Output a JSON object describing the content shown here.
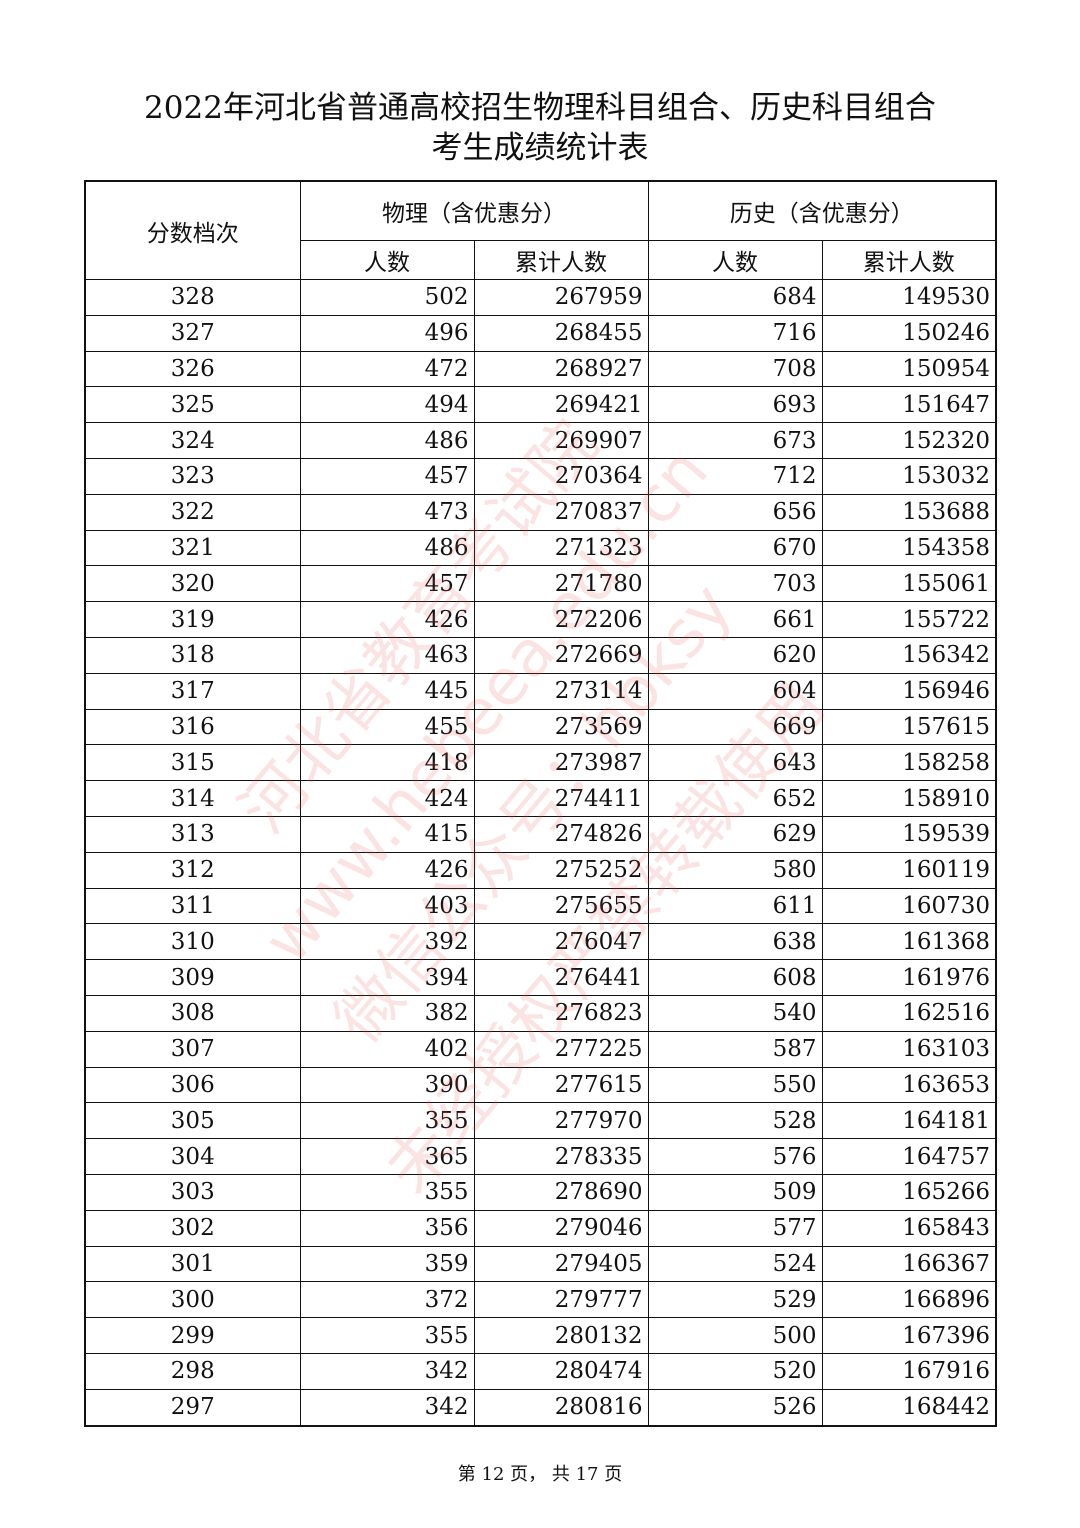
{
  "title_line1": "2022年河北省普通高校招生物理科目组合、历史科目组合",
  "title_line2": "考生成绩统计表",
  "table": {
    "col_score": "分数档次",
    "group_physics": "物理（含优惠分）",
    "group_history": "历史（含优惠分）",
    "sub_count": "人数",
    "sub_cumulative": "累计人数",
    "rows": [
      [
        "328",
        "502",
        "267959",
        "684",
        "149530"
      ],
      [
        "327",
        "496",
        "268455",
        "716",
        "150246"
      ],
      [
        "326",
        "472",
        "268927",
        "708",
        "150954"
      ],
      [
        "325",
        "494",
        "269421",
        "693",
        "151647"
      ],
      [
        "324",
        "486",
        "269907",
        "673",
        "152320"
      ],
      [
        "323",
        "457",
        "270364",
        "712",
        "153032"
      ],
      [
        "322",
        "473",
        "270837",
        "656",
        "153688"
      ],
      [
        "321",
        "486",
        "271323",
        "670",
        "154358"
      ],
      [
        "320",
        "457",
        "271780",
        "703",
        "155061"
      ],
      [
        "319",
        "426",
        "272206",
        "661",
        "155722"
      ],
      [
        "318",
        "463",
        "272669",
        "620",
        "156342"
      ],
      [
        "317",
        "445",
        "273114",
        "604",
        "156946"
      ],
      [
        "316",
        "455",
        "273569",
        "669",
        "157615"
      ],
      [
        "315",
        "418",
        "273987",
        "643",
        "158258"
      ],
      [
        "314",
        "424",
        "274411",
        "652",
        "158910"
      ],
      [
        "313",
        "415",
        "274826",
        "629",
        "159539"
      ],
      [
        "312",
        "426",
        "275252",
        "580",
        "160119"
      ],
      [
        "311",
        "403",
        "275655",
        "611",
        "160730"
      ],
      [
        "310",
        "392",
        "276047",
        "638",
        "161368"
      ],
      [
        "309",
        "394",
        "276441",
        "608",
        "161976"
      ],
      [
        "308",
        "382",
        "276823",
        "540",
        "162516"
      ],
      [
        "307",
        "402",
        "277225",
        "587",
        "163103"
      ],
      [
        "306",
        "390",
        "277615",
        "550",
        "163653"
      ],
      [
        "305",
        "355",
        "277970",
        "528",
        "164181"
      ],
      [
        "304",
        "365",
        "278335",
        "576",
        "164757"
      ],
      [
        "303",
        "355",
        "278690",
        "509",
        "165266"
      ],
      [
        "302",
        "356",
        "279046",
        "577",
        "165843"
      ],
      [
        "301",
        "359",
        "279405",
        "524",
        "166367"
      ],
      [
        "300",
        "372",
        "279777",
        "529",
        "166896"
      ],
      [
        "299",
        "355",
        "280132",
        "500",
        "167396"
      ],
      [
        "298",
        "342",
        "280474",
        "520",
        "167916"
      ],
      [
        "297",
        "342",
        "280816",
        "526",
        "168442"
      ]
    ]
  },
  "footer": "第 12 页， 共 17 页",
  "watermark": [
    "河北省教育考试院",
    "www.hebeea.edu.cn",
    "微信公众号：hbksy",
    "未经授权严禁转载使用"
  ],
  "watermark_color": "#e65050"
}
